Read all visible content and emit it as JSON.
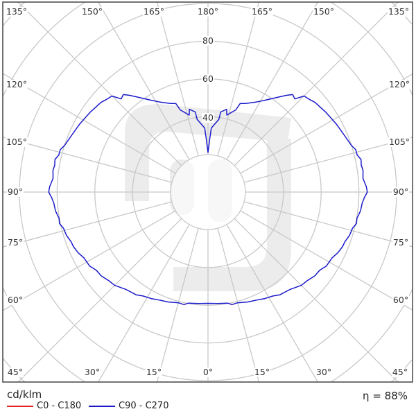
{
  "chart_data": {
    "type": "polar",
    "unit_label": "cd/klm",
    "radial_tick_labels": [
      "40",
      "60",
      "80"
    ],
    "radial_rings": [
      20,
      40,
      60,
      80,
      100,
      120,
      140,
      160
    ],
    "angle_tick_labels": {
      "top": [
        "135°",
        "150°",
        "165°",
        "180°",
        "165°",
        "150°",
        "135°"
      ],
      "left": [
        "120°",
        "105°",
        "90°",
        "75°",
        "60°"
      ],
      "right": [
        "120°",
        "105°",
        "90°",
        "75°",
        "60°"
      ],
      "bottom": [
        "45°",
        "30°",
        "15°",
        "0°",
        "15°",
        "30°",
        "45°"
      ]
    },
    "angle_grid_step_deg": 15,
    "grid": true,
    "legend_placement": "bottom-left",
    "series": [
      {
        "name": "C0 - C180",
        "color": "#e8262a",
        "points": []
      },
      {
        "name": "C90 - C270",
        "color": "#1a1acc",
        "points": [
          [
            0,
            59
          ],
          [
            5,
            59.3
          ],
          [
            10,
            59.8
          ],
          [
            12,
            61
          ],
          [
            15,
            60.8
          ],
          [
            20,
            62
          ],
          [
            25,
            63
          ],
          [
            28,
            64
          ],
          [
            32,
            65
          ],
          [
            35,
            66.5
          ],
          [
            40,
            67.5
          ],
          [
            45,
            70
          ],
          [
            48,
            70.5
          ],
          [
            52,
            72
          ],
          [
            55,
            72.3
          ],
          [
            58,
            74
          ],
          [
            62,
            74.5
          ],
          [
            65,
            76
          ],
          [
            68,
            77
          ],
          [
            70,
            77.2
          ],
          [
            73,
            78.5
          ],
          [
            76,
            79
          ],
          [
            78,
            80.5
          ],
          [
            80,
            80.2
          ],
          [
            83,
            81.5
          ],
          [
            86,
            82
          ],
          [
            88,
            83
          ],
          [
            90,
            84.5
          ],
          [
            92,
            84
          ],
          [
            95,
            82.5
          ],
          [
            98,
            83
          ],
          [
            100,
            82.5
          ],
          [
            102,
            83
          ],
          [
            104,
            81.5
          ],
          [
            106,
            81.5
          ],
          [
            108,
            80
          ],
          [
            112,
            78.5
          ],
          [
            118,
            77
          ],
          [
            124,
            75.5
          ],
          [
            130,
            74
          ],
          [
            132,
            73
          ],
          [
            135,
            72
          ],
          [
            137,
            67.5
          ],
          [
            139,
            68.5
          ],
          [
            141,
            66
          ],
          [
            144,
            62
          ],
          [
            148,
            57.5
          ],
          [
            152,
            54
          ],
          [
            157,
            51
          ],
          [
            160,
            50
          ],
          [
            161.3,
            46
          ],
          [
            166.3,
            42
          ],
          [
            167.3,
            45
          ],
          [
            171,
            43
          ],
          [
            171.5,
            39
          ],
          [
            177,
            34
          ],
          [
            178,
            29
          ],
          [
            180,
            21
          ],
          [
            -178,
            29
          ],
          [
            -177,
            34
          ],
          [
            -171.5,
            39
          ],
          [
            -171,
            43
          ],
          [
            -167.3,
            45
          ],
          [
            -166.3,
            42
          ],
          [
            -161.3,
            46
          ],
          [
            -160,
            50
          ],
          [
            -157,
            51
          ],
          [
            -152,
            54
          ],
          [
            -148,
            57.5
          ],
          [
            -144,
            62
          ],
          [
            -141,
            66
          ],
          [
            -139,
            68.5
          ],
          [
            -137,
            67.5
          ],
          [
            -135,
            72
          ],
          [
            -132,
            73
          ],
          [
            -130,
            74
          ],
          [
            -124,
            75.5
          ],
          [
            -118,
            77
          ],
          [
            -112,
            78.5
          ],
          [
            -108,
            80
          ],
          [
            -106,
            81.5
          ],
          [
            -104,
            81.5
          ],
          [
            -102,
            83
          ],
          [
            -100,
            82.5
          ],
          [
            -98,
            83
          ],
          [
            -95,
            82.5
          ],
          [
            -92,
            84
          ],
          [
            -90,
            84.5
          ],
          [
            -88,
            83
          ],
          [
            -86,
            82
          ],
          [
            -83,
            81.5
          ],
          [
            -80,
            80.2
          ],
          [
            -78,
            80.5
          ],
          [
            -76,
            79
          ],
          [
            -73,
            78.5
          ],
          [
            -70,
            77.2
          ],
          [
            -68,
            77
          ],
          [
            -65,
            76
          ],
          [
            -62,
            74.5
          ],
          [
            -58,
            74
          ],
          [
            -55,
            72.3
          ],
          [
            -52,
            72
          ],
          [
            -48,
            70.5
          ],
          [
            -45,
            70
          ],
          [
            -40,
            67.5
          ],
          [
            -35,
            66.5
          ],
          [
            -32,
            65
          ],
          [
            -28,
            64
          ],
          [
            -25,
            63
          ],
          [
            -20,
            62
          ],
          [
            -15,
            60.8
          ],
          [
            -12,
            61
          ],
          [
            -10,
            59.8
          ],
          [
            -5,
            59.3
          ],
          [
            0,
            59
          ]
        ]
      }
    ]
  },
  "efficiency": "η = 88%"
}
